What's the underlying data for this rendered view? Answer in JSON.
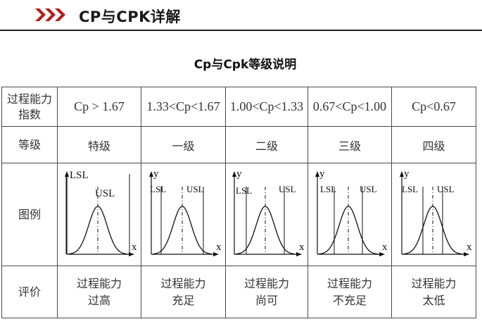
{
  "header": {
    "title": "CP与CPK详解"
  },
  "subtitle": {
    "text": "Cp与Cpk等级说明"
  },
  "table": {
    "row_heads": {
      "capability_line1": "过程能力",
      "capability_line2": "指数",
      "grade": "等级",
      "figure": "图例",
      "evaluation": "评价"
    },
    "columns": [
      {
        "condition": "Cp > 1.67",
        "grade": "特级",
        "eval_line1": "过程能力",
        "eval_line2": "过高",
        "fig": {
          "lsl": "LSL",
          "usl": "USL",
          "y": "",
          "x": "x",
          "spec_width": "very_wide"
        }
      },
      {
        "condition": "1.33<Cp<1.67",
        "grade": "一级",
        "eval_line1": "过程能力",
        "eval_line2": "充足",
        "fig": {
          "lsl": "LSL",
          "usl": "USL",
          "y": "y",
          "x": "x",
          "spec_width": "wide"
        }
      },
      {
        "condition": "1.00<Cp<1.33",
        "grade": "二级",
        "eval_line1": "过程能力",
        "eval_line2": "尚可",
        "fig": {
          "lsl": "LSL",
          "usl": "USL",
          "y": "y",
          "x": "x",
          "spec_width": "medium"
        }
      },
      {
        "condition": "0.67<Cp<1.00",
        "grade": "三级",
        "eval_line1": "过程能力",
        "eval_line2": "不充足",
        "fig": {
          "lsl": "LSL",
          "usl": "USL",
          "y": "y",
          "x": "x",
          "spec_width": "narrow"
        }
      },
      {
        "condition": "Cp<0.67",
        "grade": "四级",
        "eval_line1": "过程能力",
        "eval_line2": "太低",
        "fig": {
          "lsl": "LSL",
          "usl": "USL",
          "y": "y",
          "x": "x",
          "spec_width": "very_narrow"
        }
      }
    ]
  },
  "colors": {
    "chevron": "#b0221f",
    "border": "#4a4a4a",
    "text": "#333333"
  },
  "icons": {
    "section_marker": "triple-chevron-right-icon"
  }
}
